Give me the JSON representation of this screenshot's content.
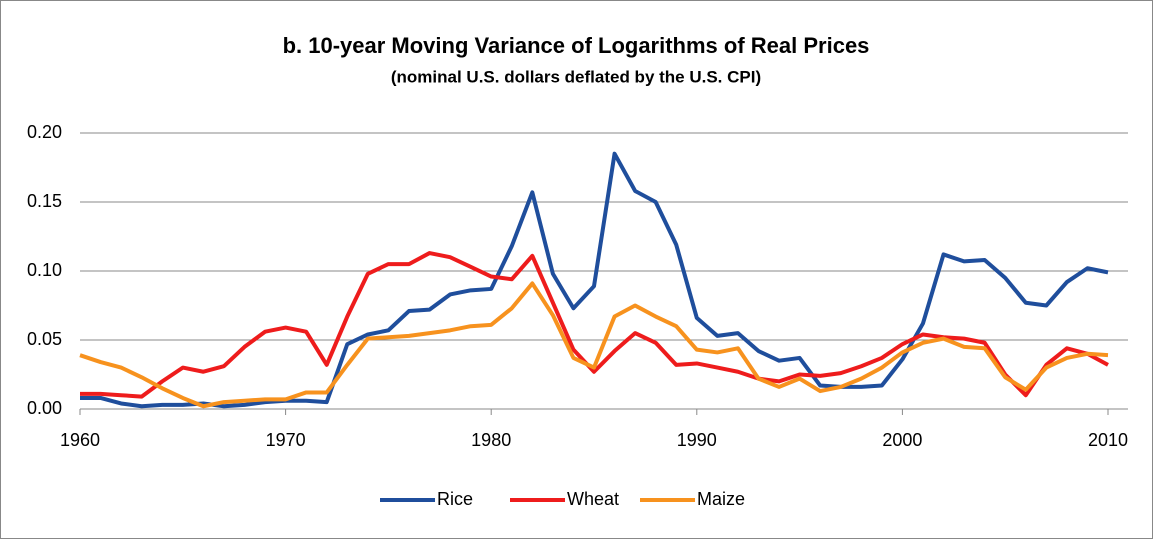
{
  "chart_data": {
    "type": "line",
    "title": "b. 10-year Moving Variance of Logarithms of Real Prices",
    "subtitle": "(nominal U.S. dollars deflated by the U.S. CPI)",
    "x": [
      1960,
      1961,
      1962,
      1963,
      1964,
      1965,
      1966,
      1967,
      1968,
      1969,
      1970,
      1971,
      1972,
      1973,
      1974,
      1975,
      1976,
      1977,
      1978,
      1979,
      1980,
      1981,
      1982,
      1983,
      1984,
      1985,
      1986,
      1987,
      1988,
      1989,
      1990,
      1991,
      1992,
      1993,
      1994,
      1995,
      1996,
      1997,
      1998,
      1999,
      2000,
      2001,
      2002,
      2003,
      2004,
      2005,
      2006,
      2007,
      2008,
      2009,
      2010
    ],
    "series": [
      {
        "name": "Rice",
        "color": "#1f4e9c",
        "values": [
          0.008,
          0.008,
          0.004,
          0.002,
          0.003,
          0.003,
          0.004,
          0.002,
          0.003,
          0.005,
          0.006,
          0.006,
          0.005,
          0.047,
          0.054,
          0.057,
          0.071,
          0.072,
          0.083,
          0.086,
          0.087,
          0.118,
          0.157,
          0.098,
          0.073,
          0.089,
          0.185,
          0.158,
          0.15,
          0.119,
          0.066,
          0.053,
          0.055,
          0.042,
          0.035,
          0.037,
          0.017,
          0.016,
          0.016,
          0.017,
          0.036,
          0.062,
          0.112,
          0.107,
          0.108,
          0.095,
          0.077,
          0.075,
          0.092,
          0.102,
          0.099
        ]
      },
      {
        "name": "Wheat",
        "color": "#ee1c1c",
        "values": [
          0.011,
          0.011,
          0.01,
          0.009,
          0.02,
          0.03,
          0.027,
          0.031,
          0.045,
          0.056,
          0.059,
          0.056,
          0.032,
          0.067,
          0.098,
          0.105,
          0.105,
          0.113,
          0.11,
          0.103,
          0.096,
          0.094,
          0.111,
          0.077,
          0.043,
          0.027,
          0.042,
          0.055,
          0.048,
          0.032,
          0.033,
          0.03,
          0.027,
          0.022,
          0.02,
          0.025,
          0.024,
          0.026,
          0.031,
          0.037,
          0.047,
          0.054,
          0.052,
          0.051,
          0.048,
          0.025,
          0.01,
          0.032,
          0.044,
          0.04,
          0.032
        ]
      },
      {
        "name": "Maize",
        "color": "#f7921e",
        "values": [
          0.039,
          0.034,
          0.03,
          0.023,
          0.015,
          0.008,
          0.002,
          0.005,
          0.006,
          0.007,
          0.007,
          0.012,
          0.012,
          0.032,
          0.051,
          0.052,
          0.053,
          0.055,
          0.057,
          0.06,
          0.061,
          0.073,
          0.091,
          0.068,
          0.037,
          0.03,
          0.067,
          0.075,
          0.067,
          0.06,
          0.043,
          0.041,
          0.044,
          0.022,
          0.016,
          0.022,
          0.013,
          0.016,
          0.022,
          0.03,
          0.041,
          0.048,
          0.051,
          0.045,
          0.044,
          0.023,
          0.014,
          0.03,
          0.037,
          0.04,
          0.039
        ]
      }
    ],
    "xlim": [
      1960,
      2010
    ],
    "xticks": [
      1960,
      1970,
      1980,
      1990,
      2000,
      2010
    ],
    "ylim": [
      0,
      0.2
    ],
    "yticks": [
      {
        "value": 0,
        "label": "0.00"
      },
      {
        "value": 0.05,
        "label": "0.05"
      },
      {
        "value": 0.1,
        "label": "0.10"
      },
      {
        "value": 0.15,
        "label": "0.15"
      },
      {
        "value": 0.2,
        "label": "0.20"
      }
    ],
    "grid": true,
    "legend": "bottom"
  }
}
